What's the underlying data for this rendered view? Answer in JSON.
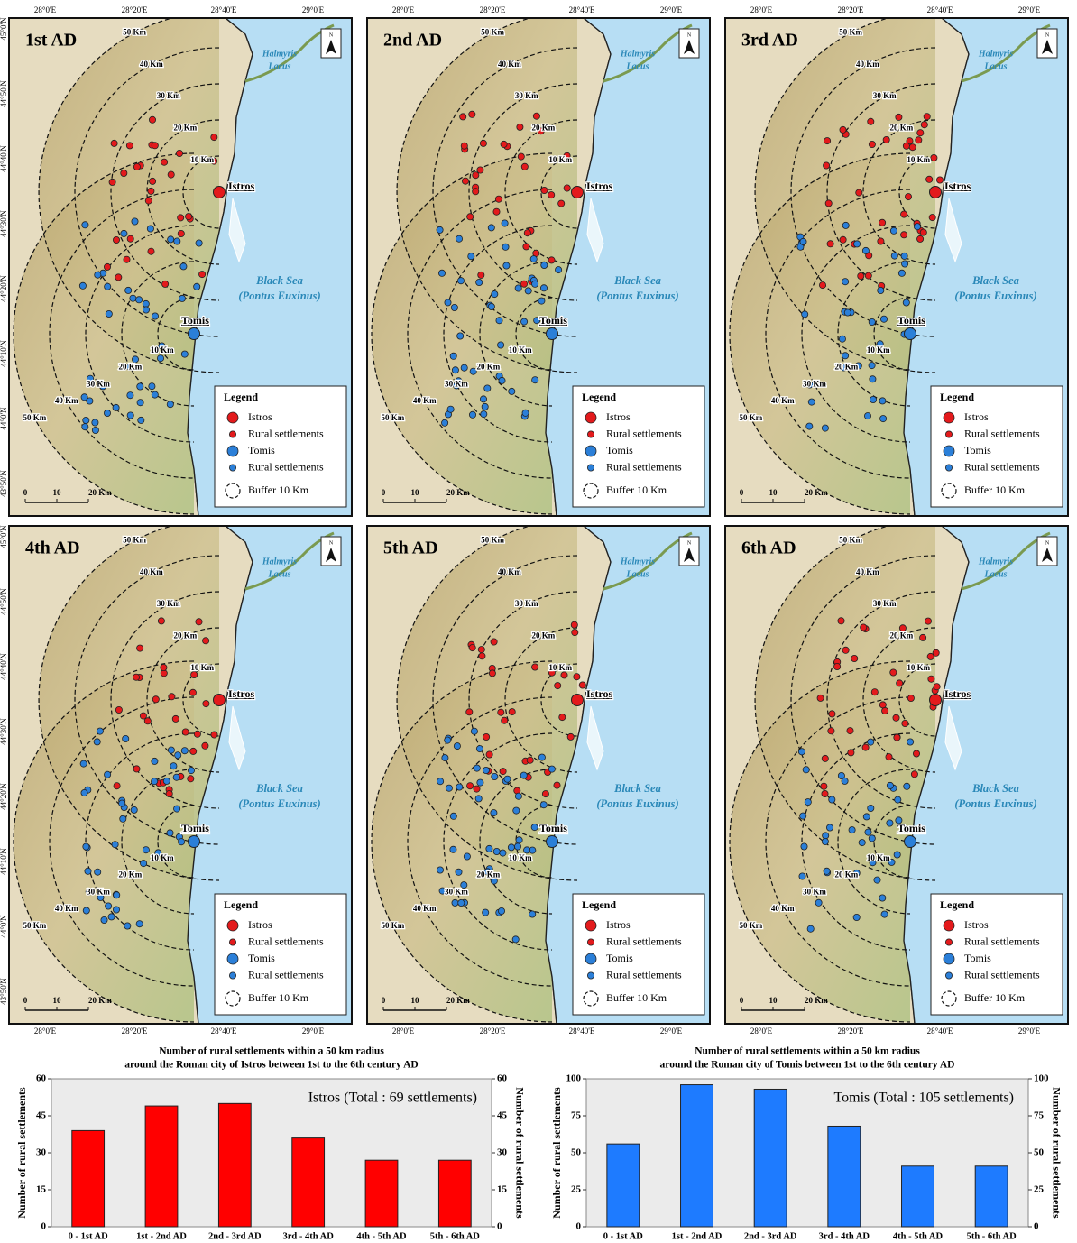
{
  "maps": {
    "panels": [
      {
        "title": "1st AD"
      },
      {
        "title": "2nd AD"
      },
      {
        "title": "3rd AD"
      },
      {
        "title": "4th AD"
      },
      {
        "title": "5th AD"
      },
      {
        "title": "6th AD"
      }
    ],
    "lon_labels": [
      "28°0'E",
      "28°20'E",
      "28°40'E",
      "29°0'E"
    ],
    "lat_labels": [
      "45°0'N",
      "44°50'N",
      "44°40'N",
      "44°30'N",
      "44°20'N",
      "44°10'N",
      "44°0'N",
      "43°50'N"
    ],
    "places": {
      "istros": "Istros",
      "tomis": "Tomis",
      "lake": [
        "Halmyris",
        "Lacus"
      ],
      "sea": [
        "Black Sea",
        "(Pontus Euxinus)"
      ]
    },
    "buffer_labels": [
      "10 Km",
      "20 Km",
      "30 Km",
      "40 Km",
      "50 Km"
    ],
    "scale": [
      "0",
      "10",
      "20 Km"
    ],
    "north": "N",
    "legend": {
      "title": "Legend",
      "items": [
        "Istros",
        "Rural settlements",
        "Tomis",
        "Rural settlements",
        "Buffer 10 Km"
      ]
    }
  },
  "chart_data": [
    {
      "type": "bar",
      "title": [
        "Number of rural settlements within a 50 km radius",
        "around the Roman city of Istros between 1st to the 6th century AD"
      ],
      "annotation": "Istros (Total : 69 settlements)",
      "y_label": "Number of rural settlements",
      "y2_label": "Number of rural settlements",
      "categories": [
        "0 - 1st AD",
        "1st - 2nd AD",
        "2nd - 3rd AD",
        "3rd - 4th AD",
        "4th - 5th AD",
        "5th - 6th AD"
      ],
      "values": [
        39,
        49,
        50,
        36,
        27,
        27
      ],
      "color": "#ff0000",
      "ylim": [
        0,
        60
      ],
      "yticks": [
        0,
        15,
        30,
        45,
        60
      ],
      "y2lim": [
        0,
        60
      ],
      "y2ticks": [
        0,
        15,
        30,
        45,
        60
      ]
    },
    {
      "type": "bar",
      "title": [
        "Number of rural settlements within a 50 km radius",
        "around the Roman city of Tomis between 1st to the 6th century AD"
      ],
      "annotation": "Tomis (Total : 105 settlements)",
      "y_label": "Number of rural settlements",
      "y2_label": "Number of rural settlements",
      "categories": [
        "0 - 1st AD",
        "1st - 2nd AD",
        "2nd - 3rd AD",
        "3rd - 4th AD",
        "4th - 5th AD",
        "5th - 6th AD"
      ],
      "values": [
        56,
        96,
        93,
        68,
        41,
        41
      ],
      "color": "#1e7bff",
      "ylim": [
        0,
        100
      ],
      "yticks": [
        0,
        25,
        50,
        75,
        100
      ],
      "y2lim": [
        0,
        100
      ],
      "y2ticks": [
        0,
        25,
        50,
        75,
        100
      ]
    }
  ]
}
